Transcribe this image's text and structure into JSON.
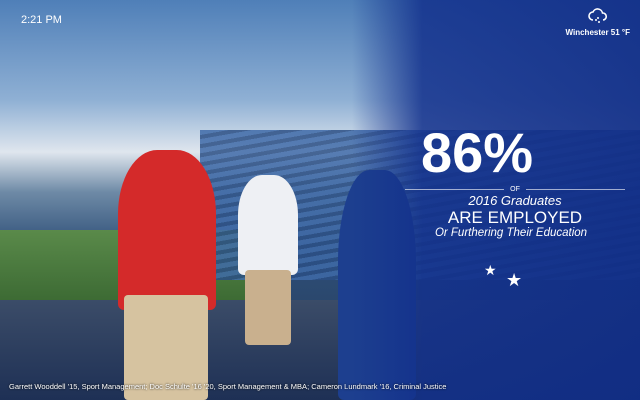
{
  "clock": {
    "time": "2:21 PM"
  },
  "weather": {
    "icon": "cloud-rain-icon",
    "location_temp": "Winchester 51 °F"
  },
  "stat": {
    "percent": "86%",
    "of": "OF",
    "graduates": "2016 Graduates",
    "employed": "ARE EMPLOYED",
    "further": "Or Furthering Their Education"
  },
  "photo_credit": "Garrett Wooddell '15, Sport Management; Doc Schulte '16 '20, Sport Management & MBA; Cameron Lundmark '16, Criminal Justice",
  "colors": {
    "overlay_blue": "#12308c",
    "jersey_red": "#d42a2a"
  }
}
